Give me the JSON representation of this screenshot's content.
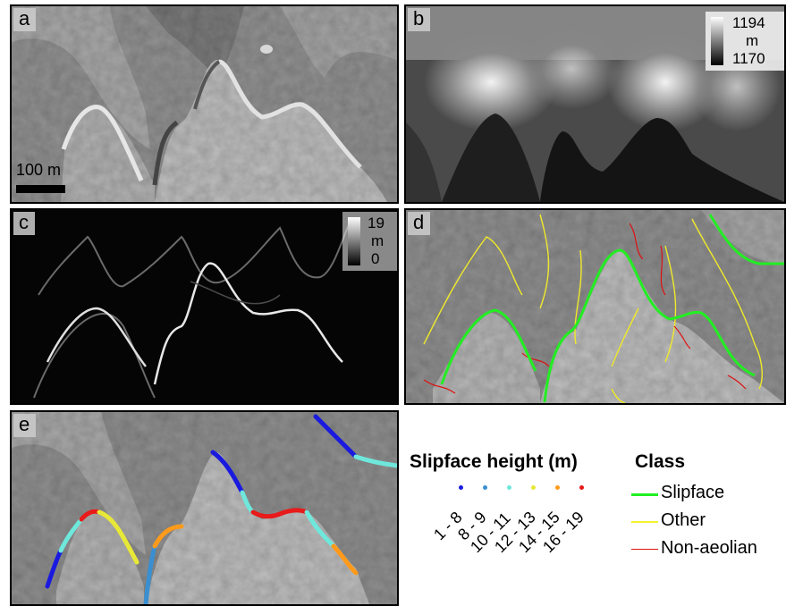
{
  "panels": {
    "a": {
      "label": "a",
      "scalebar": "100 m"
    },
    "b": {
      "label": "b",
      "colorbar": {
        "max": "1194",
        "unit": "m",
        "min": "1170"
      }
    },
    "c": {
      "label": "c",
      "colorbar": {
        "max": "19",
        "unit": "m",
        "min": "0"
      }
    },
    "d": {
      "label": "d"
    },
    "e": {
      "label": "e"
    }
  },
  "legend": {
    "slipface_title": "Slipface height (m)",
    "bins": [
      {
        "label": "1 - 8",
        "color": "#1a1adf"
      },
      {
        "label": "8 - 9",
        "color": "#3a8fd0"
      },
      {
        "label": "10 - 11",
        "color": "#6fe8dc"
      },
      {
        "label": "12 - 13",
        "color": "#e8e838"
      },
      {
        "label": "14 - 15",
        "color": "#ff9a1a"
      },
      {
        "label": "16 - 19",
        "color": "#e81a1a"
      }
    ],
    "class_title": "Class",
    "classes": [
      {
        "label": "Slipface",
        "color": "#22ee22"
      },
      {
        "label": "Other",
        "color": "#f2f230"
      },
      {
        "label": "Non-aeolian",
        "color": "#dd1111"
      }
    ]
  }
}
